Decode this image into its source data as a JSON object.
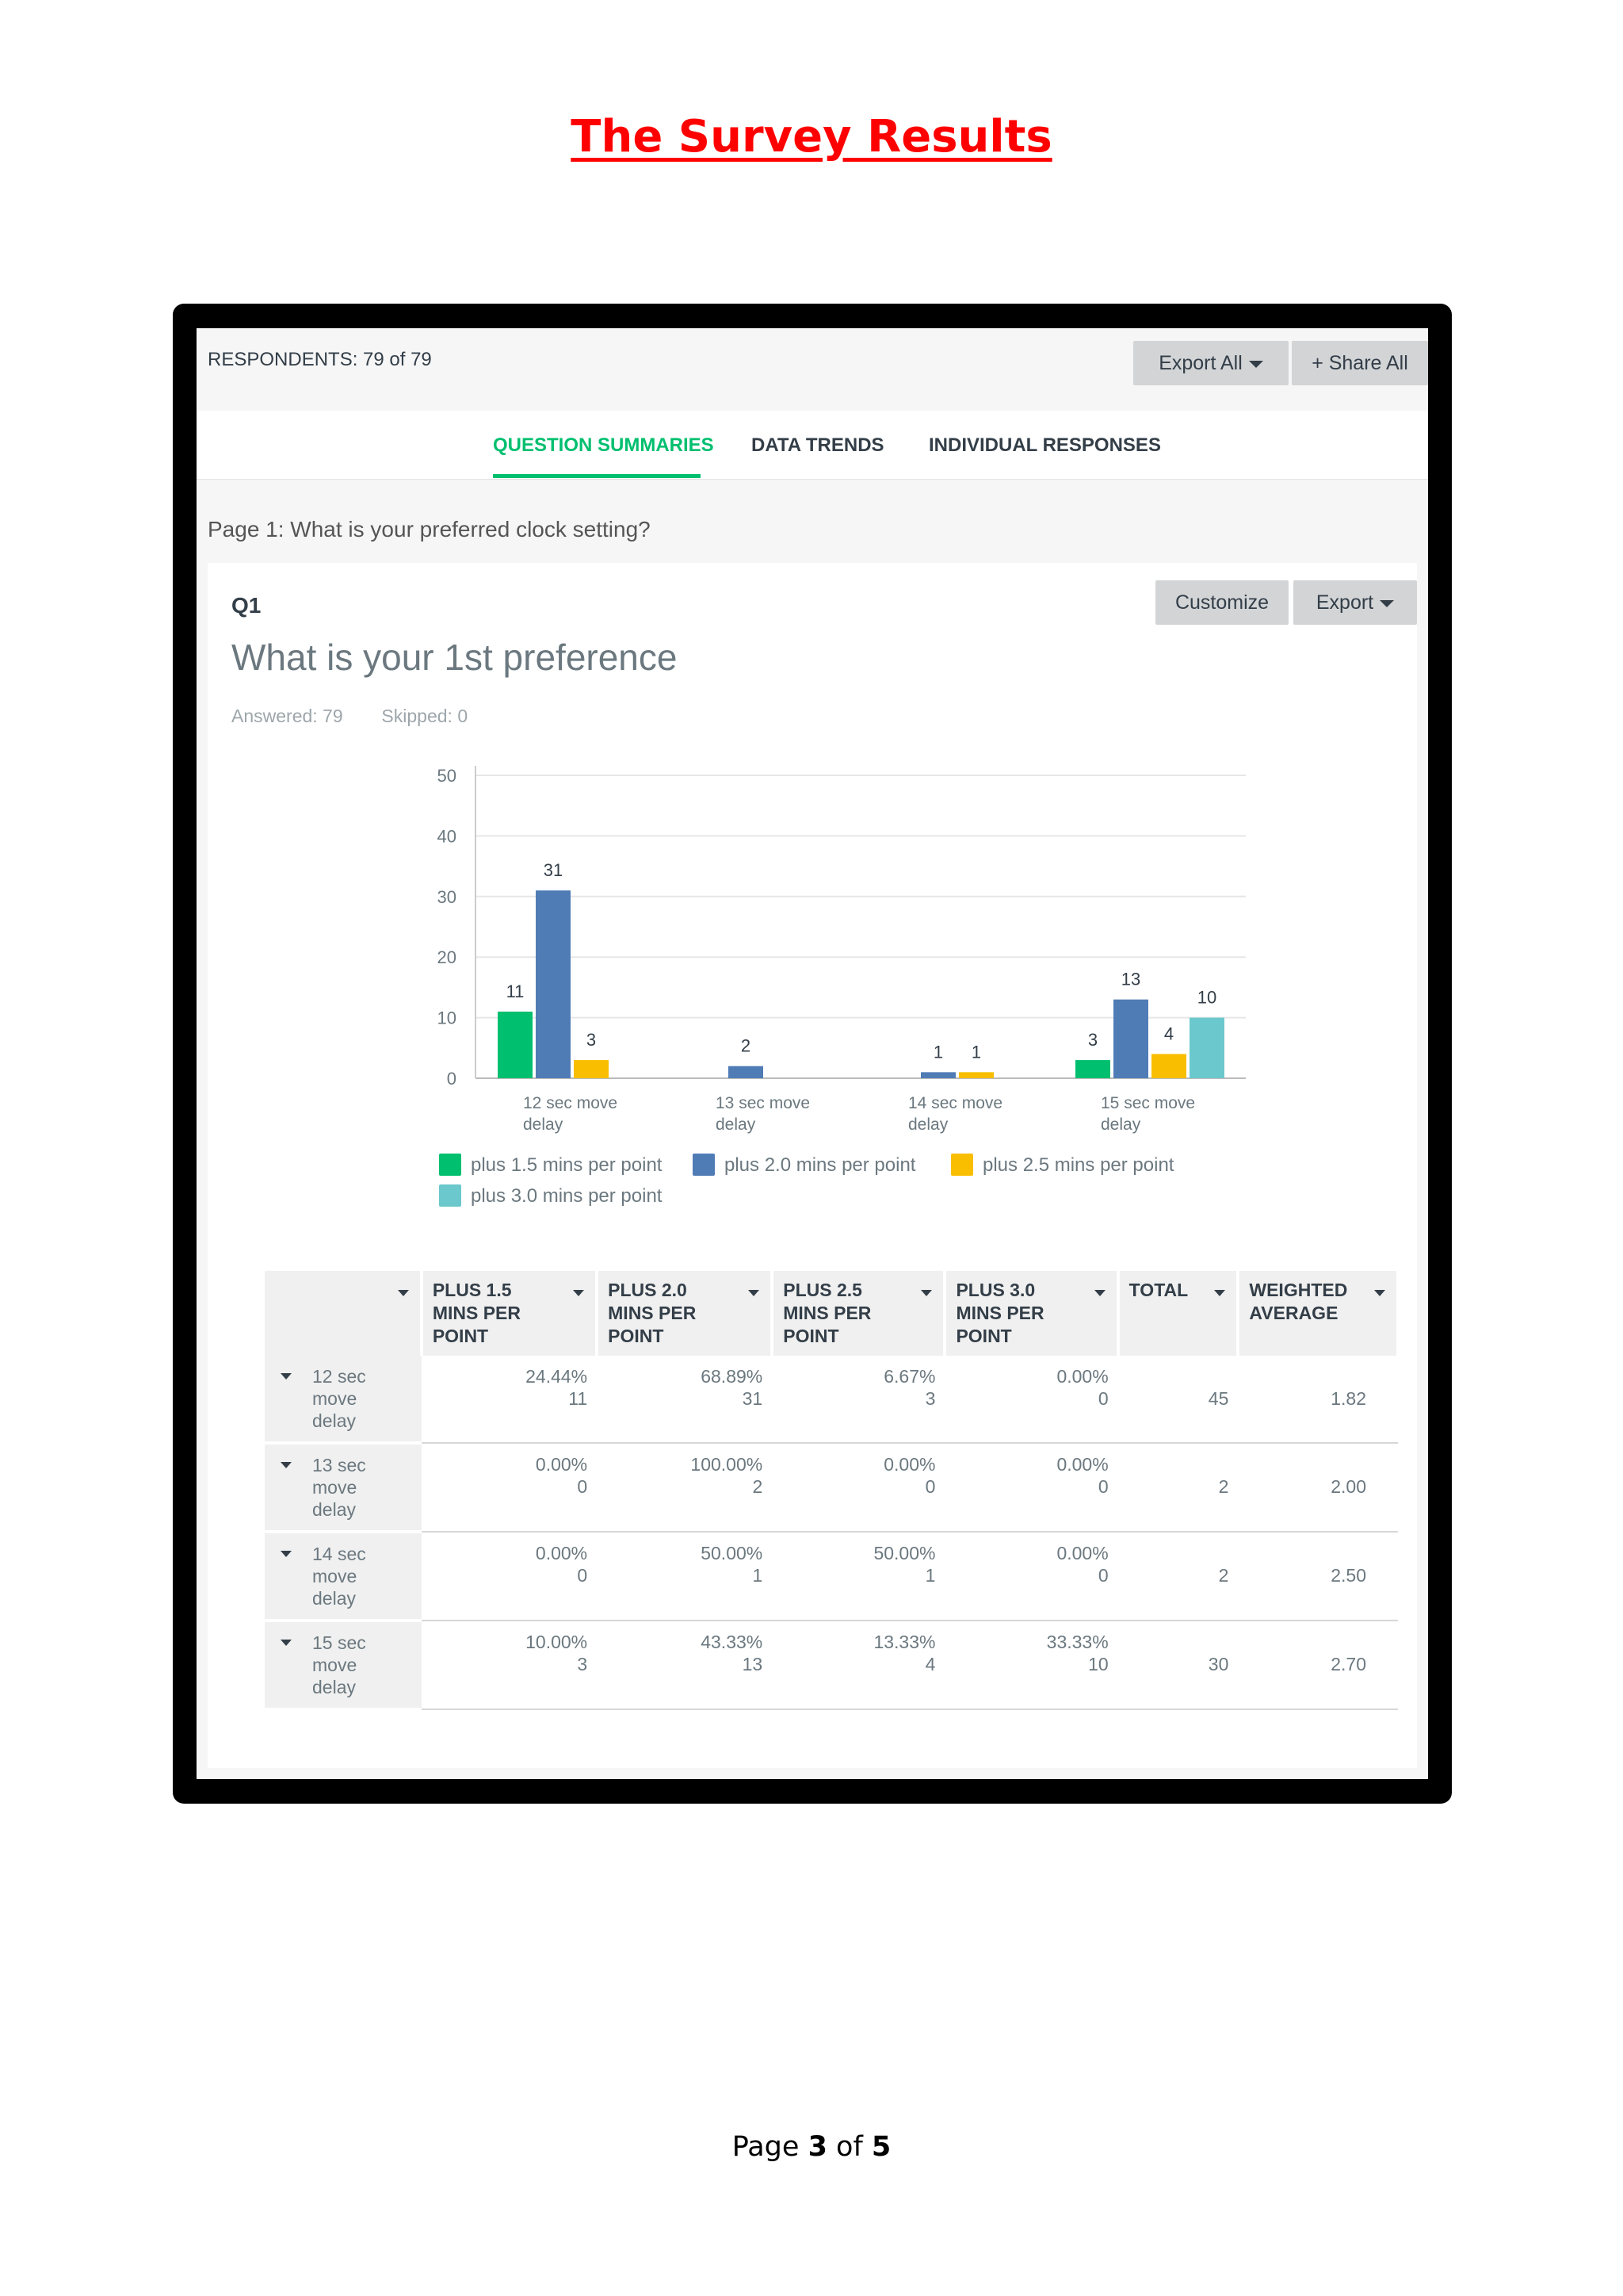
{
  "document": {
    "title": "The Survey Results",
    "footer": {
      "prefix": "Page ",
      "current": "3",
      "middle": " of ",
      "total": "5"
    }
  },
  "app": {
    "respondents_label": "RESPONDENTS: 79 of 79",
    "export_all_label": "Export All",
    "share_all_label": "+ Share All",
    "tabs": [
      {
        "label": "QUESTION SUMMARIES",
        "active": true
      },
      {
        "label": "DATA TRENDS",
        "active": false
      },
      {
        "label": "INDIVIDUAL RESPONSES",
        "active": false
      }
    ],
    "page_question": "Page 1: What is your preferred clock setting?"
  },
  "question": {
    "number": "Q1",
    "title": "What is your 1st preference",
    "answered": "Answered: 79",
    "skipped": "Skipped: 0",
    "customize_label": "Customize",
    "export_label": "Export"
  },
  "chart_data": {
    "type": "bar",
    "categories": [
      "12 sec move delay",
      "13 sec move delay",
      "14 sec move delay",
      "15 sec move delay"
    ],
    "category_lines": [
      [
        "12 sec move",
        "delay"
      ],
      [
        "13 sec move",
        "delay"
      ],
      [
        "14 sec move",
        "delay"
      ],
      [
        "15 sec move",
        "delay"
      ]
    ],
    "series": [
      {
        "name": "plus 1.5 mins per point",
        "color": "#00bf6f",
        "values": [
          11,
          0,
          0,
          3
        ]
      },
      {
        "name": "plus 2.0 mins per point",
        "color": "#507cb6",
        "values": [
          31,
          2,
          1,
          13
        ]
      },
      {
        "name": "plus 2.5 mins per point",
        "color": "#f9be00",
        "values": [
          3,
          0,
          1,
          4
        ]
      },
      {
        "name": "plus 3.0 mins per point",
        "color": "#6bc8cd",
        "values": [
          0,
          0,
          0,
          10
        ]
      }
    ],
    "yticks": [
      0,
      10,
      20,
      30,
      40,
      50
    ],
    "ylim": [
      0,
      50
    ],
    "grid": true,
    "legend_position": "bottom"
  },
  "table": {
    "headers": [
      {
        "lines": [
          "PLUS 1.5",
          "MINS PER",
          "POINT"
        ]
      },
      {
        "lines": [
          "PLUS 2.0",
          "MINS PER",
          "POINT"
        ]
      },
      {
        "lines": [
          "PLUS 2.5",
          "MINS PER",
          "POINT"
        ]
      },
      {
        "lines": [
          "PLUS 3.0",
          "MINS PER",
          "POINT"
        ]
      },
      {
        "lines": [
          "TOTAL"
        ]
      },
      {
        "lines": [
          "WEIGHTED",
          "AVERAGE"
        ]
      }
    ],
    "rows": [
      {
        "label": [
          "12 sec",
          "move",
          "delay"
        ],
        "cells": [
          [
            "24.44%",
            "11"
          ],
          [
            "68.89%",
            "31"
          ],
          [
            "6.67%",
            "3"
          ],
          [
            "0.00%",
            "0"
          ]
        ],
        "total": "45",
        "weighted": "1.82"
      },
      {
        "label": [
          "13 sec",
          "move",
          "delay"
        ],
        "cells": [
          [
            "0.00%",
            "0"
          ],
          [
            "100.00%",
            "2"
          ],
          [
            "0.00%",
            "0"
          ],
          [
            "0.00%",
            "0"
          ]
        ],
        "total": "2",
        "weighted": "2.00"
      },
      {
        "label": [
          "14 sec",
          "move",
          "delay"
        ],
        "cells": [
          [
            "0.00%",
            "0"
          ],
          [
            "50.00%",
            "1"
          ],
          [
            "50.00%",
            "1"
          ],
          [
            "0.00%",
            "0"
          ]
        ],
        "total": "2",
        "weighted": "2.50"
      },
      {
        "label": [
          "15 sec",
          "move",
          "delay"
        ],
        "cells": [
          [
            "10.00%",
            "3"
          ],
          [
            "43.33%",
            "13"
          ],
          [
            "13.33%",
            "4"
          ],
          [
            "33.33%",
            "10"
          ]
        ],
        "total": "30",
        "weighted": "2.70"
      }
    ]
  }
}
